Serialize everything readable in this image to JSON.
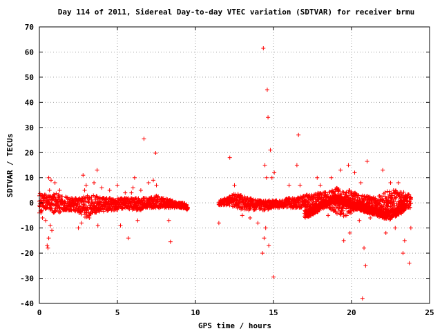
{
  "chart_data": {
    "type": "scatter",
    "title": "Day 114 of 2011, Sidereal Day-to-day VTEC variation (SDTVAR) for receiver brmu",
    "xlabel": "GPS time / hours",
    "ylabel": "SDTVAR / TECUs",
    "xlim": [
      0,
      25
    ],
    "ylim": [
      -40,
      70
    ],
    "xticks": [
      0,
      5,
      10,
      15,
      20,
      25
    ],
    "yticks": [
      -40,
      -30,
      -20,
      -10,
      0,
      10,
      20,
      30,
      40,
      50,
      60,
      70
    ],
    "grid": true,
    "legend": "none",
    "marker": "plus",
    "color": "#ff0000",
    "bands": [
      {
        "x": [
          0.0,
          0.5,
          1.0,
          1.5,
          2.0,
          2.5,
          3.0,
          3.5,
          4.0,
          4.5,
          5.0,
          5.5,
          6.0,
          6.5,
          7.0,
          7.5,
          8.0,
          8.5,
          9.0,
          9.5
        ],
        "y_low": [
          -4,
          -2,
          -5,
          -3,
          -3,
          -4,
          -6,
          -4,
          -4,
          -3,
          -3,
          -2,
          -3,
          -3,
          -2,
          -2,
          -2,
          -2,
          -2,
          -3
        ],
        "y_high": [
          4,
          3,
          4,
          3,
          2,
          2,
          3,
          3,
          2,
          2,
          2,
          2,
          2,
          2,
          2,
          3,
          2,
          1,
          0,
          0
        ]
      },
      {
        "x": [
          11.5,
          12.0,
          12.5,
          13.0,
          13.5,
          14.0,
          14.5,
          15.0,
          15.5,
          16.0,
          16.5,
          17.0,
          17.5,
          18.0,
          18.5,
          19.0,
          19.5,
          20.0,
          20.5,
          21.0,
          21.5,
          22.0,
          22.5,
          23.0,
          23.5,
          23.8
        ],
        "y_low": [
          -1,
          -1,
          -2,
          -3,
          -3,
          -3,
          -3,
          -2,
          -2,
          -2,
          -2,
          -2,
          -3,
          -2,
          -2,
          -4,
          -6,
          -4,
          -2,
          -4,
          -5,
          -5,
          -5,
          -3,
          -2,
          -2
        ],
        "y_high": [
          1,
          2,
          4,
          3,
          2,
          1,
          1,
          1,
          1,
          2,
          2,
          3,
          4,
          4,
          5,
          6,
          5,
          5,
          3,
          3,
          2,
          4,
          5,
          5,
          4,
          3
        ]
      },
      {
        "x": [
          17.0,
          17.5,
          18.0,
          18.5,
          19.0,
          19.5,
          20.0,
          20.5,
          21.0,
          21.5,
          22.0,
          22.5,
          23.0,
          23.5
        ],
        "y_low": [
          -6,
          -5,
          -3,
          -1,
          0,
          -1,
          -2,
          -3,
          -4,
          -5,
          -6,
          -7,
          -5,
          -3
        ],
        "y_high": [
          -3,
          -2,
          0,
          2,
          3,
          2,
          1,
          0,
          -1,
          -2,
          -3,
          -3,
          -2,
          0
        ]
      }
    ],
    "outliers": [
      [
        0.1,
        -4
      ],
      [
        0.2,
        -6
      ],
      [
        0.2,
        3
      ],
      [
        0.4,
        -7
      ],
      [
        0.5,
        -17
      ],
      [
        0.55,
        -18
      ],
      [
        0.6,
        -14
      ],
      [
        0.6,
        10
      ],
      [
        0.65,
        5
      ],
      [
        0.7,
        -9
      ],
      [
        0.75,
        9
      ],
      [
        0.8,
        -11
      ],
      [
        1.0,
        8
      ],
      [
        1.3,
        5
      ],
      [
        2.5,
        -10
      ],
      [
        2.7,
        -8
      ],
      [
        2.8,
        11
      ],
      [
        2.9,
        5
      ],
      [
        3.0,
        7
      ],
      [
        3.2,
        -6
      ],
      [
        3.5,
        8
      ],
      [
        3.7,
        13
      ],
      [
        3.75,
        -9
      ],
      [
        4.0,
        6
      ],
      [
        4.5,
        5
      ],
      [
        5.0,
        7
      ],
      [
        5.2,
        -9
      ],
      [
        5.5,
        4
      ],
      [
        5.7,
        -14
      ],
      [
        5.9,
        4
      ],
      [
        6.0,
        6
      ],
      [
        6.1,
        10
      ],
      [
        6.3,
        -7
      ],
      [
        6.5,
        5
      ],
      [
        6.7,
        25.5
      ],
      [
        7.0,
        8
      ],
      [
        7.3,
        9
      ],
      [
        7.45,
        19.8
      ],
      [
        7.5,
        7
      ],
      [
        8.3,
        -7
      ],
      [
        8.4,
        -15.5
      ],
      [
        11.5,
        -8
      ],
      [
        12.2,
        18
      ],
      [
        12.5,
        7
      ],
      [
        13.0,
        -5
      ],
      [
        13.5,
        -6
      ],
      [
        14.0,
        -8
      ],
      [
        14.3,
        -20
      ],
      [
        14.35,
        61.5
      ],
      [
        14.4,
        -14
      ],
      [
        14.45,
        15
      ],
      [
        14.5,
        -10
      ],
      [
        14.55,
        10
      ],
      [
        14.6,
        45
      ],
      [
        14.65,
        34
      ],
      [
        14.7,
        -17
      ],
      [
        14.8,
        21
      ],
      [
        14.9,
        10
      ],
      [
        15.0,
        -29.5
      ],
      [
        15.05,
        12
      ],
      [
        16.0,
        7
      ],
      [
        16.5,
        15
      ],
      [
        16.6,
        27
      ],
      [
        16.7,
        7
      ],
      [
        17.8,
        10
      ],
      [
        18.0,
        7
      ],
      [
        18.5,
        -5
      ],
      [
        18.7,
        10
      ],
      [
        18.9,
        -3
      ],
      [
        19.3,
        13
      ],
      [
        19.5,
        -15
      ],
      [
        19.8,
        15
      ],
      [
        19.9,
        -12
      ],
      [
        20.2,
        12
      ],
      [
        20.5,
        -7
      ],
      [
        20.6,
        8
      ],
      [
        20.7,
        -38
      ],
      [
        20.8,
        -18
      ],
      [
        20.9,
        -25
      ],
      [
        21.0,
        16.5
      ],
      [
        21.2,
        -6
      ],
      [
        22.0,
        13
      ],
      [
        22.2,
        -12
      ],
      [
        22.5,
        8
      ],
      [
        22.8,
        -10
      ],
      [
        23.0,
        8
      ],
      [
        23.3,
        -20
      ],
      [
        23.4,
        -15
      ],
      [
        23.7,
        -24
      ],
      [
        23.8,
        -10
      ]
    ]
  }
}
